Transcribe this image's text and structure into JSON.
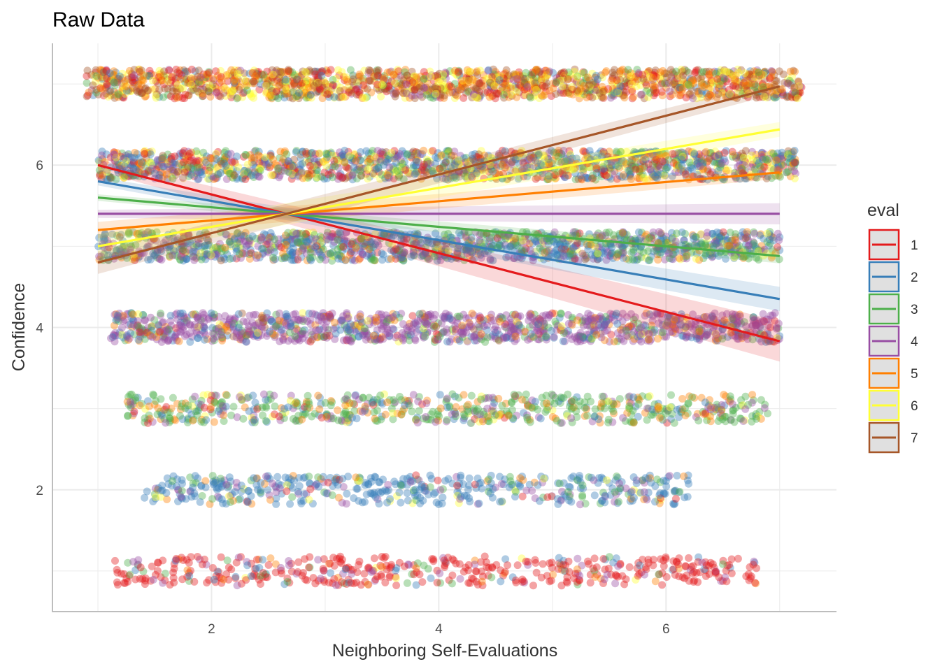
{
  "chart_data": {
    "type": "scatter",
    "title": "Raw Data",
    "xlabel": "Neighboring Self-Evaluations",
    "ylabel": "Confidence",
    "xlim": [
      0.6,
      7.5
    ],
    "ylim": [
      0.5,
      7.5
    ],
    "x_ticks": [
      "2",
      "4",
      "6"
    ],
    "x_tick_values": [
      2,
      4,
      6
    ],
    "y_ticks": [
      "2",
      "4",
      "6"
    ],
    "y_tick_values": [
      2,
      4,
      6
    ],
    "grid": true,
    "legend_title": "eval",
    "legend_position": "right",
    "jitter": true,
    "series": [
      {
        "name": "1",
        "color": "#E41A1C",
        "fit": {
          "x": [
            1,
            7
          ],
          "y": [
            6.0,
            3.83
          ]
        },
        "ci_half_width": [
          0.07,
          0.25
        ]
      },
      {
        "name": "2",
        "color": "#377EB8",
        "fit": {
          "x": [
            1,
            7
          ],
          "y": [
            5.8,
            4.35
          ]
        },
        "ci_half_width": [
          0.05,
          0.15
        ]
      },
      {
        "name": "3",
        "color": "#4DAF4A",
        "fit": {
          "x": [
            1,
            7
          ],
          "y": [
            5.6,
            4.88
          ]
        },
        "ci_half_width": [
          0.04,
          0.09
        ]
      },
      {
        "name": "4",
        "color": "#984EA3",
        "fit": {
          "x": [
            1,
            7
          ],
          "y": [
            5.4,
            5.4
          ]
        },
        "ci_half_width": [
          0.05,
          0.13
        ]
      },
      {
        "name": "5",
        "color": "#FF7F00",
        "fit": {
          "x": [
            1,
            7
          ],
          "y": [
            5.2,
            5.91
          ]
        },
        "ci_half_width": [
          0.1,
          0.08
        ]
      },
      {
        "name": "6",
        "color": "#FFFF33",
        "fit": {
          "x": [
            1,
            7
          ],
          "y": [
            5.0,
            6.44
          ]
        },
        "ci_half_width": [
          0.15,
          0.09
        ]
      },
      {
        "name": "7",
        "color": "#A65628",
        "fit": {
          "x": [
            1,
            7
          ],
          "y": [
            4.8,
            6.97
          ]
        },
        "ci_half_width": [
          0.14,
          0.08
        ]
      }
    ],
    "point_bands": [
      {
        "y": 7,
        "x_range": [
          0.9,
          7.2
        ],
        "mix": [
          0.16,
          0.05,
          0.08,
          0.05,
          0.2,
          0.2,
          0.26
        ],
        "count": 1600
      },
      {
        "y": 6,
        "x_range": [
          1.0,
          7.15
        ],
        "mix": [
          0.13,
          0.27,
          0.16,
          0.13,
          0.13,
          0.13,
          0.05
        ],
        "count": 1500
      },
      {
        "y": 5,
        "x_range": [
          1.0,
          7.0
        ],
        "mix": [
          0.05,
          0.34,
          0.24,
          0.22,
          0.08,
          0.05,
          0.02
        ],
        "count": 1300
      },
      {
        "y": 4,
        "x_range": [
          1.1,
          7.0
        ],
        "mix": [
          0.05,
          0.14,
          0.1,
          0.56,
          0.1,
          0.03,
          0.02
        ],
        "count": 1200
      },
      {
        "y": 3,
        "x_range": [
          1.2,
          6.9
        ],
        "mix": [
          0.04,
          0.12,
          0.46,
          0.16,
          0.17,
          0.05,
          0.0
        ],
        "count": 650
      },
      {
        "y": 2,
        "x_range": [
          1.4,
          6.2
        ],
        "mix": [
          0.04,
          0.62,
          0.1,
          0.14,
          0.05,
          0.05,
          0.0
        ],
        "count": 480
      },
      {
        "y": 1,
        "x_range": [
          1.15,
          6.8
        ],
        "mix": [
          0.72,
          0.06,
          0.05,
          0.12,
          0.04,
          0.01,
          0.0
        ],
        "count": 480
      }
    ]
  }
}
